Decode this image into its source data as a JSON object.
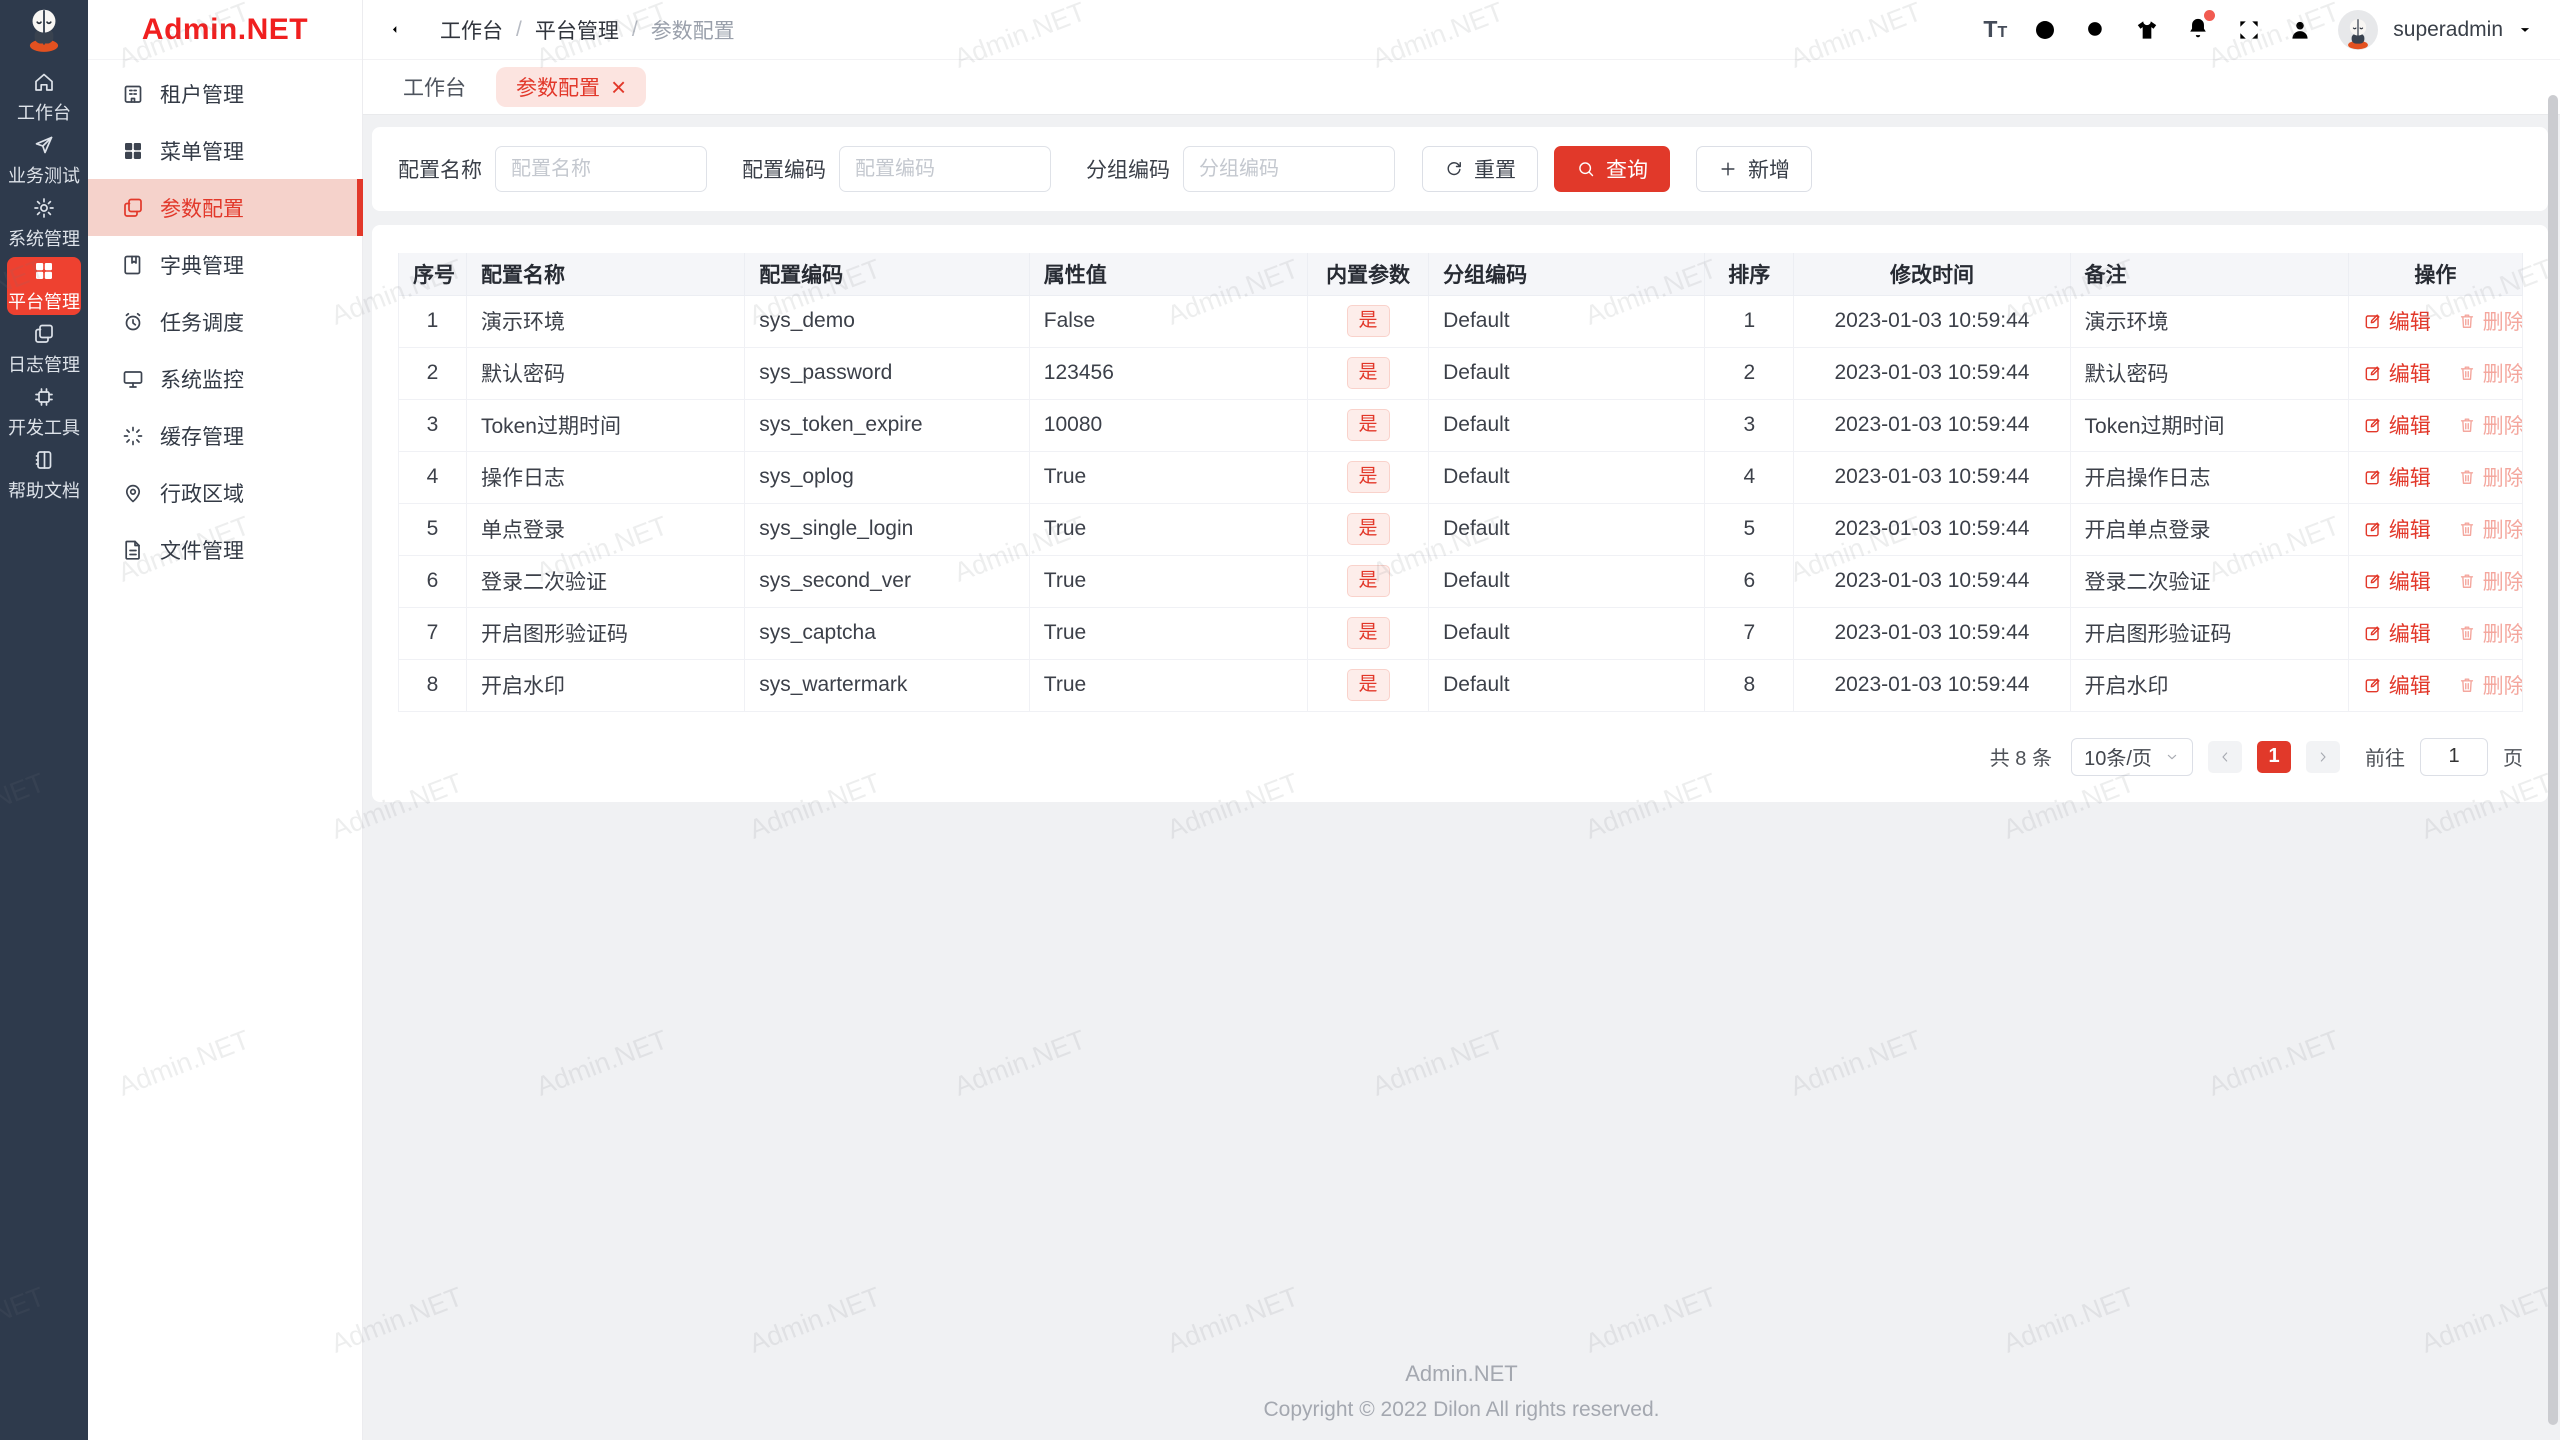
{
  "app": {
    "logo_text": "Admin.NET",
    "watermark": "Admin.NET"
  },
  "colors": {
    "primary": "#e1392a",
    "rail_bg": "#2e3a4c",
    "logo_red": "#f01f1f",
    "sidebar_active_bg": "#f5d2cb",
    "badge_bg": "#fdedea"
  },
  "rail": {
    "items": [
      {
        "id": "workbench",
        "icon": "home",
        "label": "工作台",
        "active": false
      },
      {
        "id": "business-test",
        "icon": "send",
        "label": "业务测试",
        "active": false
      },
      {
        "id": "system-manage",
        "icon": "gear",
        "label": "系统管理",
        "active": false
      },
      {
        "id": "platform-manage",
        "icon": "grid",
        "label": "平台管理",
        "active": true
      },
      {
        "id": "log-manage",
        "icon": "copy",
        "label": "日志管理",
        "active": false
      },
      {
        "id": "dev-tools",
        "icon": "cpu",
        "label": "开发工具",
        "active": false
      },
      {
        "id": "help-docs",
        "icon": "book",
        "label": "帮助文档",
        "active": false
      }
    ]
  },
  "sidebar": {
    "items": [
      {
        "id": "tenant",
        "icon": "building",
        "label": "租户管理",
        "active": false
      },
      {
        "id": "menu",
        "icon": "grid",
        "label": "菜单管理",
        "active": false
      },
      {
        "id": "params",
        "icon": "copy",
        "label": "参数配置",
        "active": true
      },
      {
        "id": "dict",
        "icon": "dict",
        "label": "字典管理",
        "active": false
      },
      {
        "id": "schedule",
        "icon": "clock",
        "label": "任务调度",
        "active": false
      },
      {
        "id": "monitor",
        "icon": "monitor",
        "label": "系统监控",
        "active": false
      },
      {
        "id": "cache",
        "icon": "spinner",
        "label": "缓存管理",
        "active": false
      },
      {
        "id": "region",
        "icon": "pin",
        "label": "行政区域",
        "active": false
      },
      {
        "id": "file",
        "icon": "file",
        "label": "文件管理",
        "active": false
      }
    ]
  },
  "topbar": {
    "breadcrumb": [
      "工作台",
      "平台管理",
      "参数配置"
    ],
    "username": "superadmin"
  },
  "tabs": [
    {
      "label": "工作台",
      "active": false,
      "closable": false
    },
    {
      "label": "参数配置",
      "active": true,
      "closable": true
    }
  ],
  "search": {
    "fields": [
      {
        "label": "配置名称",
        "placeholder": "配置名称",
        "value": ""
      },
      {
        "label": "配置编码",
        "placeholder": "配置编码",
        "value": ""
      },
      {
        "label": "分组编码",
        "placeholder": "分组编码",
        "value": ""
      }
    ],
    "reset_label": "重置",
    "query_label": "查询",
    "add_label": "新增"
  },
  "table": {
    "columns": [
      "序号",
      "配置名称",
      "配置编码",
      "属性值",
      "内置参数",
      "分组编码",
      "排序",
      "修改时间",
      "备注",
      "操作"
    ],
    "actions": {
      "edit": "编辑",
      "delete": "删除"
    },
    "rows": [
      {
        "no": "1",
        "name": "演示环境",
        "code": "sys_demo",
        "value": "False",
        "builtin": "是",
        "group": "Default",
        "sort": "1",
        "time": "2023-01-03 10:59:44",
        "remark": "演示环境"
      },
      {
        "no": "2",
        "name": "默认密码",
        "code": "sys_password",
        "value": "123456",
        "builtin": "是",
        "group": "Default",
        "sort": "2",
        "time": "2023-01-03 10:59:44",
        "remark": "默认密码"
      },
      {
        "no": "3",
        "name": "Token过期时间",
        "code": "sys_token_expire",
        "value": "10080",
        "builtin": "是",
        "group": "Default",
        "sort": "3",
        "time": "2023-01-03 10:59:44",
        "remark": "Token过期时间"
      },
      {
        "no": "4",
        "name": "操作日志",
        "code": "sys_oplog",
        "value": "True",
        "builtin": "是",
        "group": "Default",
        "sort": "4",
        "time": "2023-01-03 10:59:44",
        "remark": "开启操作日志"
      },
      {
        "no": "5",
        "name": "单点登录",
        "code": "sys_single_login",
        "value": "True",
        "builtin": "是",
        "group": "Default",
        "sort": "5",
        "time": "2023-01-03 10:59:44",
        "remark": "开启单点登录"
      },
      {
        "no": "6",
        "name": "登录二次验证",
        "code": "sys_second_ver",
        "value": "True",
        "builtin": "是",
        "group": "Default",
        "sort": "6",
        "time": "2023-01-03 10:59:44",
        "remark": "登录二次验证"
      },
      {
        "no": "7",
        "name": "开启图形验证码",
        "code": "sys_captcha",
        "value": "True",
        "builtin": "是",
        "group": "Default",
        "sort": "7",
        "time": "2023-01-03 10:59:44",
        "remark": "开启图形验证码"
      },
      {
        "no": "8",
        "name": "开启水印",
        "code": "sys_wartermark",
        "value": "True",
        "builtin": "是",
        "group": "Default",
        "sort": "8",
        "time": "2023-01-03 10:59:44",
        "remark": "开启水印"
      }
    ]
  },
  "pagination": {
    "total_label": "共 8 条",
    "page_size": "10条/页",
    "current_page": "1",
    "goto_label": "前往",
    "goto_value": "1",
    "page_label": "页"
  },
  "footer": {
    "line1": "Admin.NET",
    "line2": "Copyright © 2022 Dilon All rights reserved."
  }
}
